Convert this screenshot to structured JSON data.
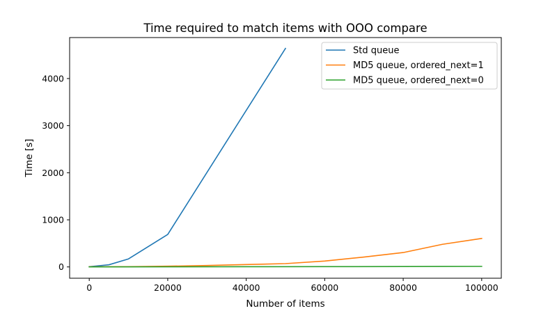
{
  "chart_data": {
    "type": "line",
    "title": "Time required to match items with OOO compare",
    "xlabel": "Number of items",
    "ylabel": "Time [s]",
    "xlim": [
      -5000,
      105000
    ],
    "ylim": [
      -240,
      4870
    ],
    "xticks": [
      0,
      20000,
      40000,
      60000,
      80000,
      100000
    ],
    "xtick_labels": [
      "0",
      "20000",
      "40000",
      "60000",
      "80000",
      "100000"
    ],
    "yticks": [
      0,
      1000,
      2000,
      3000,
      4000
    ],
    "ytick_labels": [
      "0",
      "1000",
      "2000",
      "3000",
      "4000"
    ],
    "grid": false,
    "legend_position": "top-right",
    "series": [
      {
        "name": "Std queue",
        "color": "#1f77b4",
        "x": [
          0,
          5000,
          10000,
          20000,
          50000
        ],
        "y": [
          5,
          45,
          170,
          690,
          4640
        ]
      },
      {
        "name": "MD5 queue, ordered_next=1",
        "color": "#ff7f0e",
        "x": [
          0,
          10000,
          20000,
          30000,
          40000,
          50000,
          60000,
          70000,
          80000,
          90000,
          100000
        ],
        "y": [
          2,
          5,
          15,
          30,
          50,
          70,
          125,
          210,
          305,
          480,
          605
        ]
      },
      {
        "name": "MD5 queue, ordered_next=0",
        "color": "#2ca02c",
        "x": [
          0,
          20000,
          40000,
          60000,
          80000,
          100000
        ],
        "y": [
          1,
          3,
          4,
          6,
          8,
          11
        ]
      }
    ]
  }
}
